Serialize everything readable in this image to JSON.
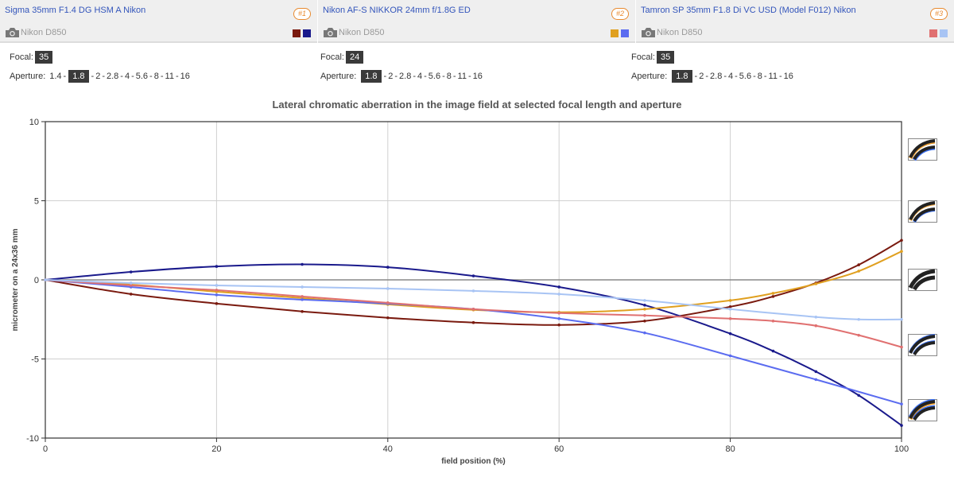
{
  "lenses": [
    {
      "name": "Sigma 35mm F1.4 DG HSM A Nikon",
      "badge": "#1",
      "camera": "Nikon D850",
      "colors": [
        "#7a1a0f",
        "#1a1a8c"
      ],
      "focal_label": "Focal:",
      "focal": "35",
      "aperture_label": "Aperture:",
      "apertures": [
        "1.4",
        "1.8",
        "2",
        "2.8",
        "4",
        "5.6",
        "8",
        "11",
        "16"
      ],
      "aperture_selected": "1.8"
    },
    {
      "name": "Nikon AF-S NIKKOR 24mm f/1.8G ED",
      "badge": "#2",
      "camera": "Nikon D850",
      "colors": [
        "#e0a020",
        "#5b6cf0"
      ],
      "focal_label": "Focal:",
      "focal": "24",
      "aperture_label": "Aperture:",
      "apertures": [
        "1.8",
        "2",
        "2.8",
        "4",
        "5.6",
        "8",
        "11",
        "16"
      ],
      "aperture_selected": "1.8"
    },
    {
      "name": "Tamron SP 35mm F1.8 Di VC USD (Model F012) Nikon",
      "badge": "#3",
      "camera": "Nikon D850",
      "colors": [
        "#e07070",
        "#a8c4f4"
      ],
      "focal_label": "Focal:",
      "focal": "35",
      "aperture_label": "Aperture:",
      "apertures": [
        "1.8",
        "2",
        "2.8",
        "4",
        "5.6",
        "8",
        "11",
        "16"
      ],
      "aperture_selected": "1.8"
    }
  ],
  "chart_data": {
    "type": "line",
    "title": "Lateral chromatic aberration in the image field at selected focal length and aperture",
    "xlabel": "field position (%)",
    "ylabel": "micrometer on a 24x36 mm",
    "xlim": [
      0,
      100
    ],
    "ylim": [
      -10,
      10
    ],
    "xticks": [
      "0",
      "20",
      "40",
      "60",
      "80",
      "100"
    ],
    "yticks": [
      "10",
      "5",
      "0",
      "-5",
      "-10"
    ],
    "grid": true,
    "series": [
      {
        "color": "#7a1a0f",
        "x": [
          0,
          10,
          20,
          30,
          40,
          50,
          60,
          70,
          80,
          85,
          90,
          95,
          100
        ],
        "y": [
          0,
          -0.9,
          -1.5,
          -2.0,
          -2.4,
          -2.7,
          -2.85,
          -2.6,
          -1.7,
          -1.05,
          -0.2,
          0.95,
          2.5
        ]
      },
      {
        "color": "#1a1a8c",
        "x": [
          0,
          10,
          20,
          30,
          40,
          50,
          60,
          70,
          80,
          85,
          90,
          95,
          100
        ],
        "y": [
          0,
          0.5,
          0.85,
          0.98,
          0.8,
          0.25,
          -0.45,
          -1.6,
          -3.4,
          -4.5,
          -5.8,
          -7.3,
          -9.2
        ]
      },
      {
        "color": "#e0a020",
        "x": [
          0,
          10,
          20,
          30,
          40,
          50,
          60,
          70,
          80,
          85,
          90,
          95,
          100
        ],
        "y": [
          0,
          -0.3,
          -0.75,
          -1.15,
          -1.55,
          -1.9,
          -2.05,
          -1.85,
          -1.3,
          -0.85,
          -0.25,
          0.55,
          1.8
        ]
      },
      {
        "color": "#5b6cf0",
        "x": [
          0,
          10,
          20,
          30,
          40,
          50,
          60,
          70,
          80,
          90,
          100
        ],
        "y": [
          0,
          -0.45,
          -0.95,
          -1.25,
          -1.5,
          -1.85,
          -2.45,
          -3.35,
          -4.8,
          -6.3,
          -7.85
        ]
      },
      {
        "color": "#e07070",
        "x": [
          0,
          10,
          20,
          30,
          40,
          50,
          60,
          70,
          80,
          85,
          90,
          95,
          100
        ],
        "y": [
          0,
          -0.35,
          -0.65,
          -1.05,
          -1.45,
          -1.85,
          -2.1,
          -2.25,
          -2.45,
          -2.6,
          -2.9,
          -3.5,
          -4.25
        ]
      },
      {
        "color": "#a8c4f4",
        "x": [
          0,
          10,
          20,
          30,
          40,
          50,
          60,
          70,
          80,
          90,
          95,
          100
        ],
        "y": [
          0,
          -0.2,
          -0.35,
          -0.45,
          -0.55,
          -0.7,
          -0.9,
          -1.3,
          -1.85,
          -2.35,
          -2.5,
          -2.5
        ]
      }
    ]
  }
}
